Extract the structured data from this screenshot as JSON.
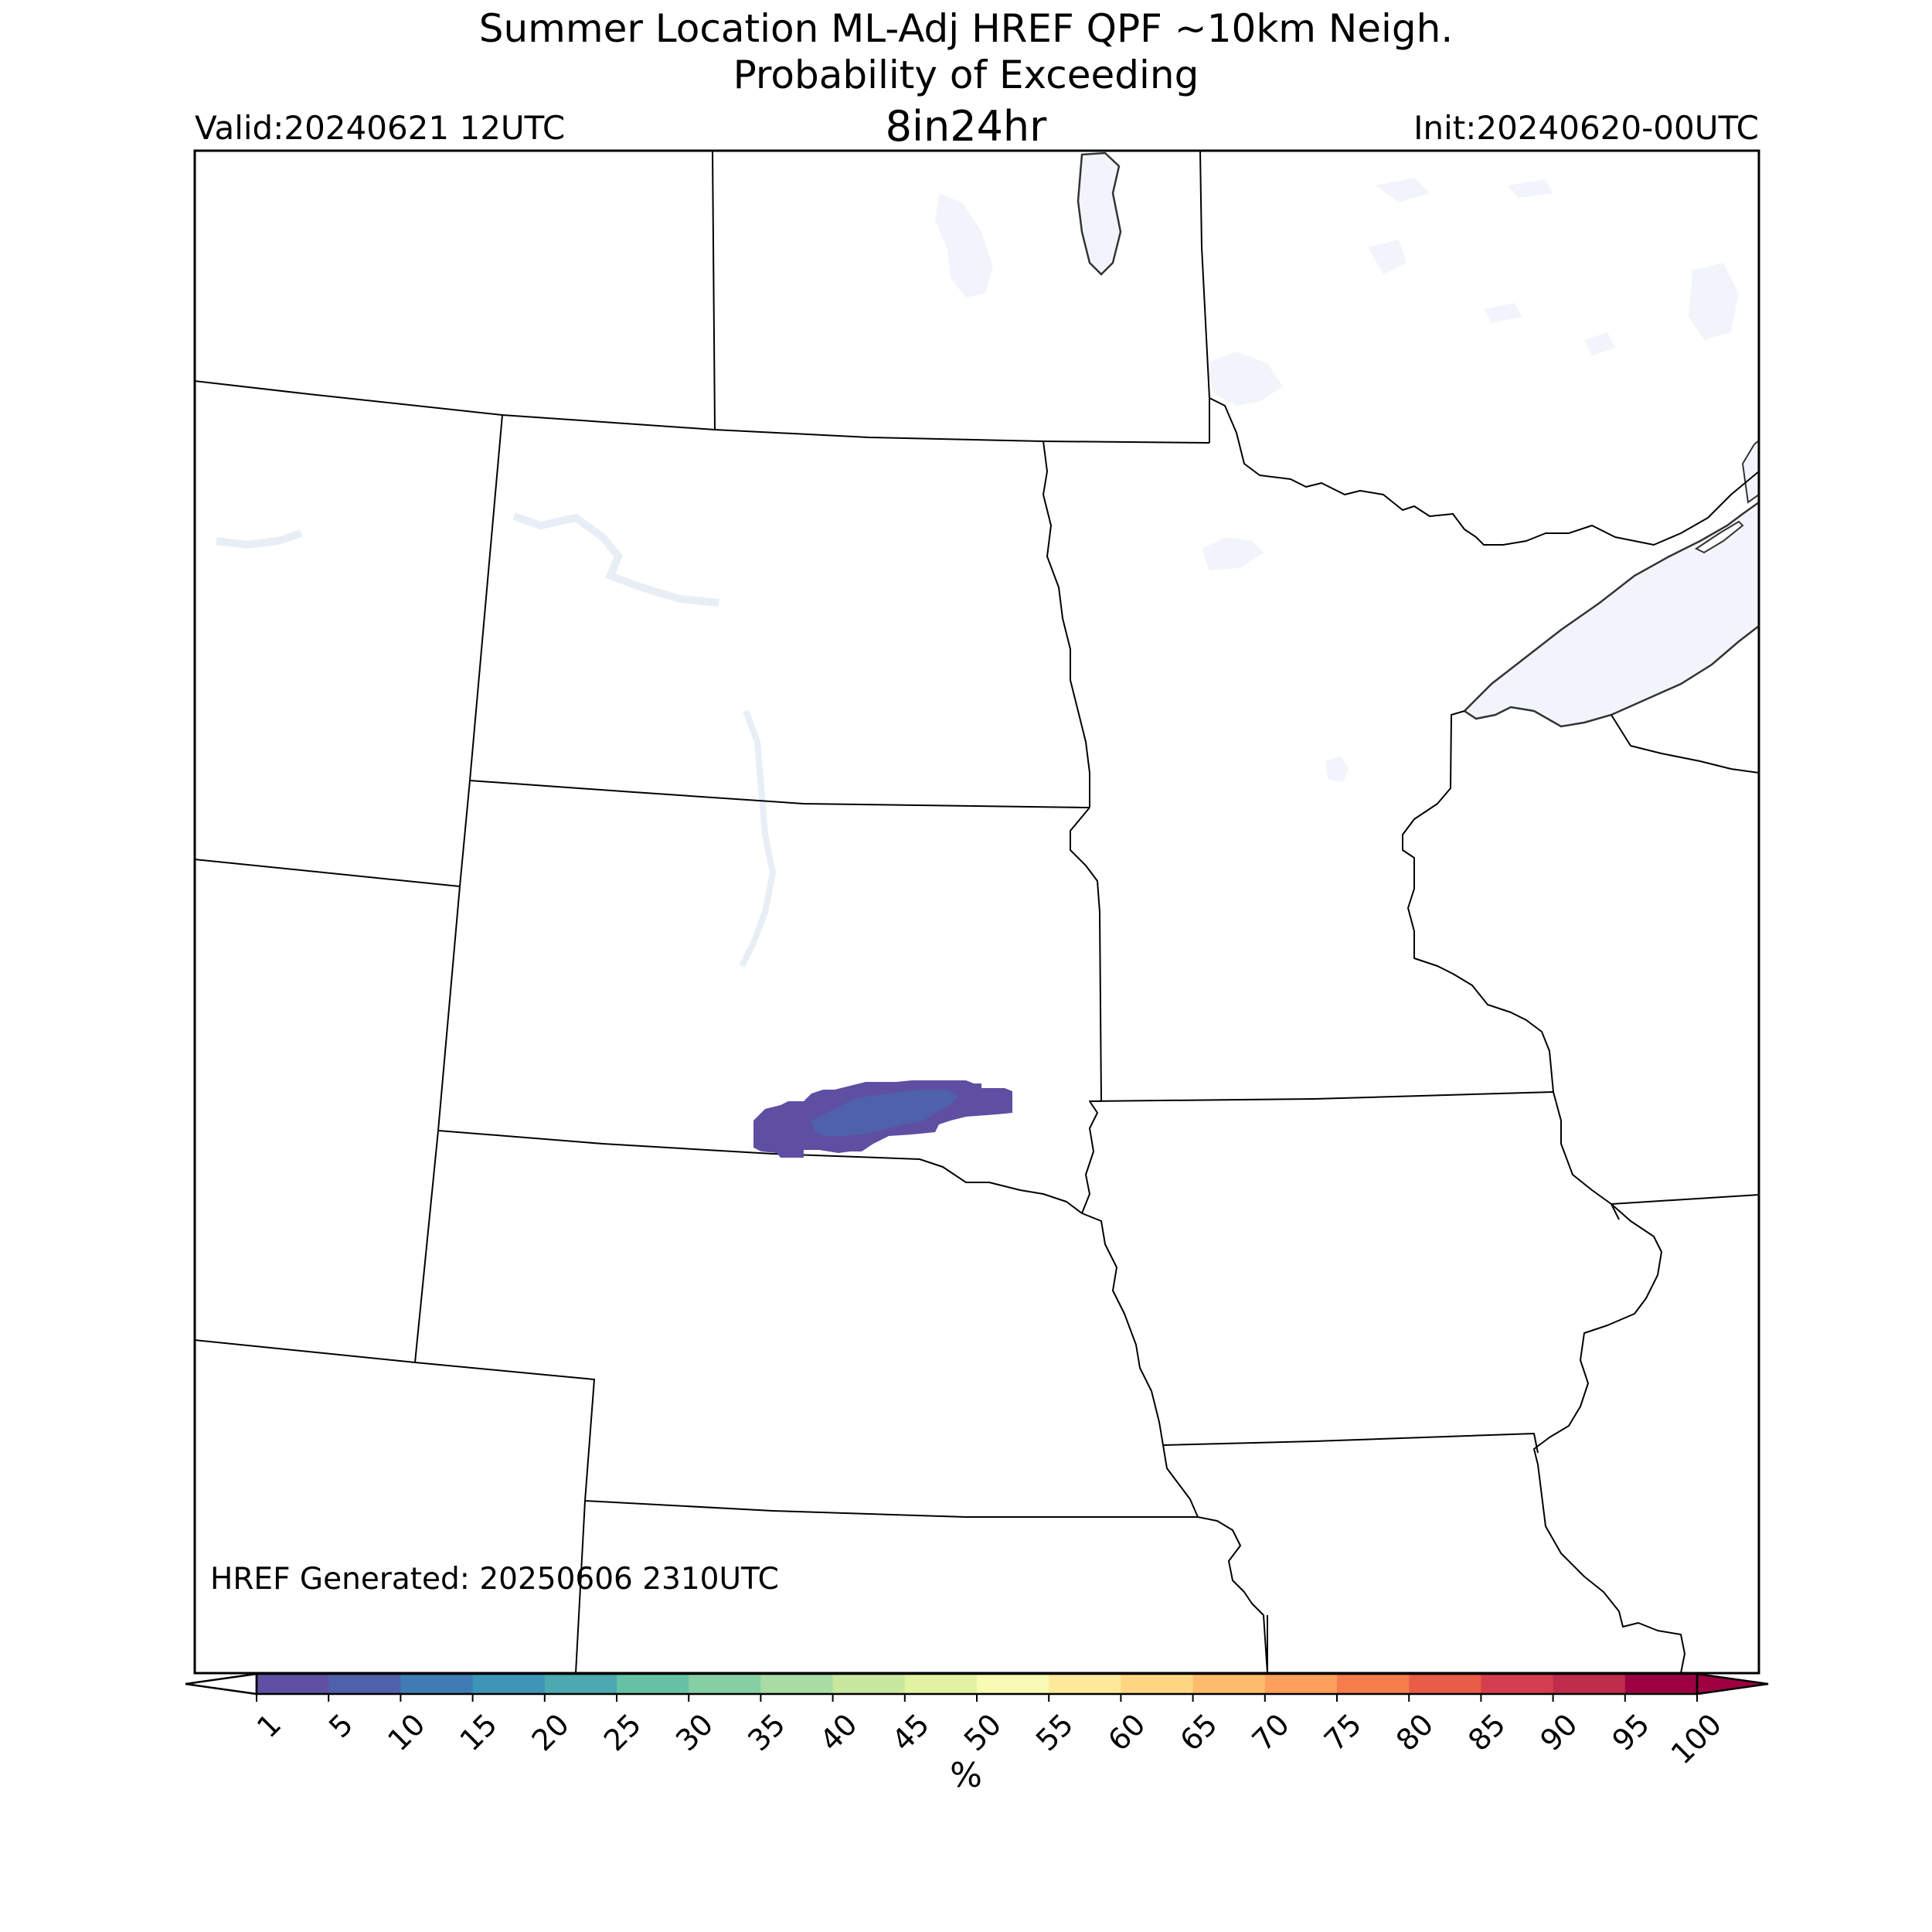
{
  "header": {
    "title_line1": "Summer Location ML-Adj HREF QPF ~10km Neigh.",
    "title_line2": "Probability of Exceeding",
    "title_line3": "8in24hr",
    "valid": "Valid:20240621 12UTC",
    "init": "Init:20240620-00UTC"
  },
  "map": {
    "generated_label": "HREF Generated: 20250606 2310UTC",
    "water_color": "#f1f5fb",
    "border_color": "#000000",
    "lake_edge_color": "#333333",
    "probability_area": {
      "outer_level": 1,
      "inner_level": 5
    }
  },
  "colorbar": {
    "unit": "%",
    "ticks": [
      "1",
      "5",
      "10",
      "15",
      "20",
      "25",
      "30",
      "35",
      "40",
      "45",
      "50",
      "55",
      "60",
      "65",
      "70",
      "75",
      "80",
      "85",
      "90",
      "95",
      "100"
    ],
    "colors": [
      "#5e4fa2",
      "#4f61aa",
      "#3f7cb6",
      "#3d95b8",
      "#4ca9b0",
      "#66c2a5",
      "#86cfa5",
      "#a9dca4",
      "#c7e89e",
      "#e1f3a0",
      "#f7fbb3",
      "#fee99a",
      "#fed681",
      "#fdbb6c",
      "#fca05b",
      "#f57e4c",
      "#e95c47",
      "#d53e4f",
      "#c02c4b",
      "#9e0142"
    ],
    "under_color": "#ffffff",
    "over_color": "#9e0142"
  }
}
